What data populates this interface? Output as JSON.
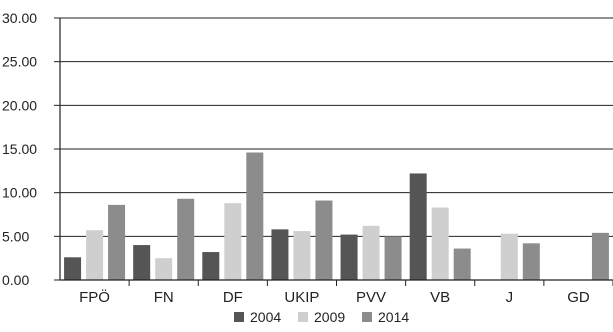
{
  "chart_data": {
    "type": "bar",
    "title": "",
    "xlabel": "",
    "ylabel": "",
    "categories": [
      "FPÖ",
      "FN",
      "DF",
      "UKIP",
      "PVV",
      "VB",
      "J",
      "GD"
    ],
    "series": [
      {
        "name": "2004",
        "color": "#555555",
        "values": [
          2.6,
          4.0,
          3.2,
          5.8,
          5.2,
          12.2,
          null,
          null
        ]
      },
      {
        "name": "2009",
        "color": "#cfcfcf",
        "values": [
          5.7,
          2.5,
          8.8,
          5.6,
          6.2,
          8.3,
          5.3,
          null
        ]
      },
      {
        "name": "2014",
        "color": "#8c8c8c",
        "values": [
          8.6,
          9.3,
          14.6,
          9.1,
          5.0,
          3.6,
          4.2,
          5.4
        ]
      }
    ],
    "ylim": [
      0,
      30
    ],
    "yticks": [
      "0.00",
      "5.00",
      "10.00",
      "15.00",
      "20.00",
      "25.00",
      "30.00"
    ],
    "grid": true,
    "legend_position": "bottom"
  }
}
